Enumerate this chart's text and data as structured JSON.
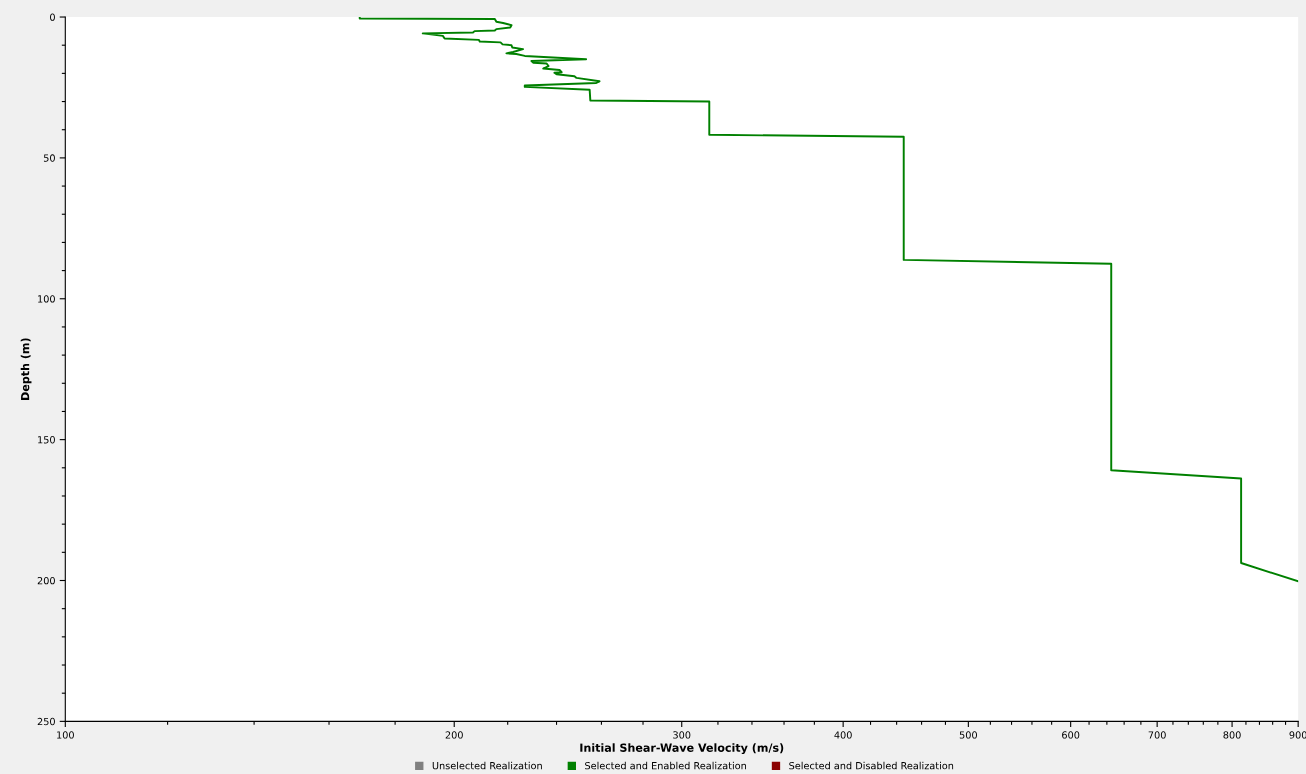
{
  "chart_data": {
    "type": "line",
    "xlabel": "Initial Shear-Wave Velocity (m/s)",
    "ylabel": "Depth (m)",
    "log": "x",
    "xlim": [
      100,
      900
    ],
    "ylim": [
      250,
      0
    ],
    "legend": "bottom",
    "grid": false,
    "marker": "none",
    "line_style": "solid",
    "xticks": [
      100,
      {
        "value": 120,
        "label": null
      },
      {
        "value": 140,
        "label": null
      },
      {
        "value": 160,
        "label": null
      },
      {
        "value": 180,
        "label": null
      },
      200,
      {
        "value": 220,
        "label": null
      },
      {
        "value": 240,
        "label": null
      },
      {
        "value": 260,
        "label": null
      },
      {
        "value": 280,
        "label": null
      },
      300,
      {
        "value": 320,
        "label": null
      },
      {
        "value": 340,
        "label": null
      },
      {
        "value": 360,
        "label": null
      },
      {
        "value": 380,
        "label": null
      },
      400,
      {
        "value": 420,
        "label": null
      },
      {
        "value": 440,
        "label": null
      },
      {
        "value": 460,
        "label": null
      },
      {
        "value": 480,
        "label": null
      },
      500,
      {
        "value": 520,
        "label": null
      },
      {
        "value": 540,
        "label": null
      },
      {
        "value": 560,
        "label": null
      },
      {
        "value": 580,
        "label": null
      },
      600,
      {
        "value": 620,
        "label": null
      },
      {
        "value": 640,
        "label": null
      },
      {
        "value": 660,
        "label": null
      },
      {
        "value": 680,
        "label": null
      },
      700,
      {
        "value": 720,
        "label": null
      },
      {
        "value": 740,
        "label": null
      },
      {
        "value": 760,
        "label": null
      },
      {
        "value": 780,
        "label": null
      },
      800,
      {
        "value": 820,
        "label": null
      },
      {
        "value": 840,
        "label": null
      },
      {
        "value": 860,
        "label": null
      },
      {
        "value": 880,
        "label": null
      },
      900
    ],
    "yticks": [
      0,
      {
        "value": 10,
        "label": null
      },
      {
        "value": 20,
        "label": null
      },
      {
        "value": 30,
        "label": null
      },
      {
        "value": 40,
        "label": null
      },
      50,
      {
        "value": 60,
        "label": null
      },
      {
        "value": 70,
        "label": null
      },
      {
        "value": 80,
        "label": null
      },
      {
        "value": 90,
        "label": null
      },
      100,
      {
        "value": 110,
        "label": null
      },
      {
        "value": 120,
        "label": null
      },
      {
        "value": 130,
        "label": null
      },
      {
        "value": 140,
        "label": null
      },
      150,
      {
        "value": 160,
        "label": null
      },
      {
        "value": 170,
        "label": null
      },
      {
        "value": 180,
        "label": null
      },
      {
        "value": 190,
        "label": null
      },
      200,
      {
        "value": 210,
        "label": null
      },
      {
        "value": 220,
        "label": null
      },
      {
        "value": 230,
        "label": null
      },
      {
        "value": 240,
        "label": null
      },
      250
    ],
    "series": [
      {
        "name": "Unselected Realization",
        "color": "#808080"
      },
      {
        "name": "Selected and Enabled Realization",
        "color": "#008000",
        "x": [
          169,
          169,
          215,
          215.6,
          218.2,
          221.5,
          221,
          215.6,
          215,
          207.4,
          206.8,
          189.1,
          196,
          196.6,
          209,
          209.3,
          217.2,
          218,
          221.5,
          221.8,
          226.1,
          222.1,
          219.5,
          223.4,
          226.8,
          253,
          229.5,
          230.3,
          235.8,
          236.6,
          234.4,
          241.3,
          242.2,
          239.1,
          240,
          247.8,
          248.7,
          259.1,
          257.6,
          226.8,
          226.8,
          254.6,
          254.9,
          315.1,
          315.1,
          445.6,
          445.6,
          645,
          645,
          813,
          813,
          900
        ],
        "values": [
          0,
          0.5,
          0.7,
          1.7,
          2.1,
          2.9,
          3.7,
          4.3,
          4.8,
          5,
          5.5,
          5.8,
          6.7,
          7.6,
          8.1,
          8.7,
          9,
          9.7,
          10,
          10.8,
          11.4,
          12.4,
          12.9,
          13.1,
          13.8,
          15,
          15.6,
          16.2,
          16.5,
          17.4,
          18.3,
          18.8,
          19.6,
          19.8,
          20.3,
          21,
          21.6,
          22.8,
          23.4,
          24.3,
          24.8,
          25.8,
          29.6,
          30,
          41.8,
          42.5,
          86.2,
          87.6,
          160.9,
          163.8,
          193.8,
          200.3
        ]
      },
      {
        "name": "Selected and Disabled Realization",
        "color": "#8b0000"
      }
    ]
  }
}
